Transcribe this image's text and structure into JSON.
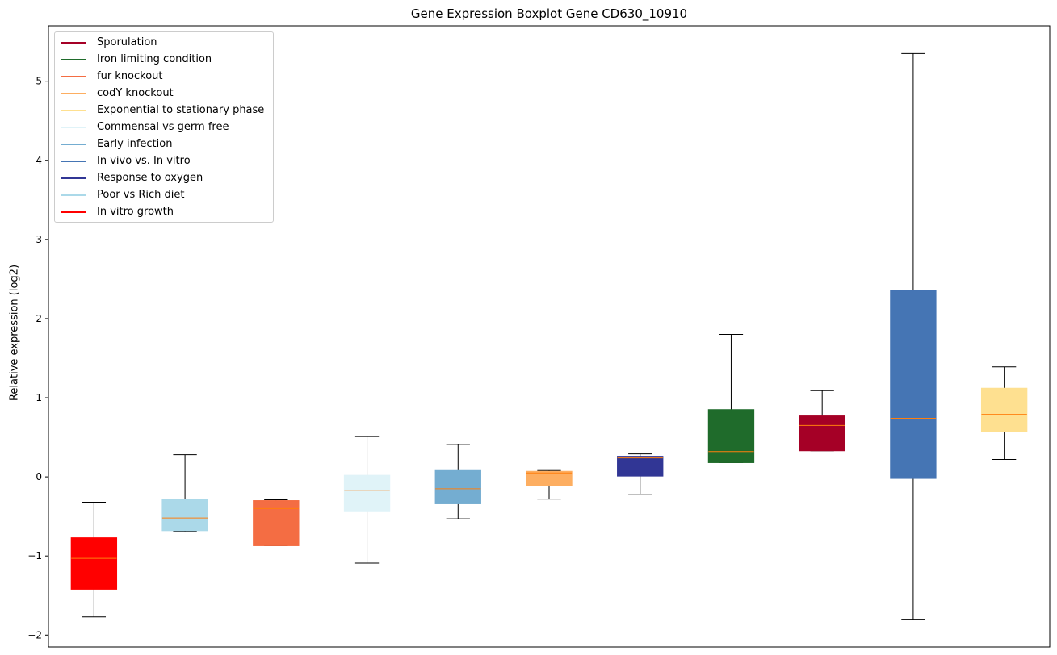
{
  "chart_data": {
    "type": "box",
    "title": "Gene Expression Boxplot Gene CD630_10910",
    "xlabel": "",
    "ylabel": "Relative expression (log2)",
    "ylim": [
      -2.15,
      5.7
    ],
    "yticks": [
      -2,
      -1,
      0,
      1,
      2,
      3,
      4,
      5
    ],
    "grid": false,
    "legend_position": "top-left",
    "median_color": "#ff7f0e",
    "legend": [
      {
        "label": "Sporulation",
        "color": "#a50026"
      },
      {
        "label": "Iron limiting condition",
        "color": "#1f6b2b"
      },
      {
        "label": "fur knockout",
        "color": "#f46d43"
      },
      {
        "label": "codY knockout",
        "color": "#fdae61"
      },
      {
        "label": "Exponential to stationary phase",
        "color": "#fee090"
      },
      {
        "label": "Commensal vs germ free",
        "color": "#e0f3f8"
      },
      {
        "label": "Early infection",
        "color": "#74add1"
      },
      {
        "label": "In vivo vs. In vitro",
        "color": "#4575b4"
      },
      {
        "label": "Response to oxygen",
        "color": "#313695"
      },
      {
        "label": "Poor vs Rich diet",
        "color": "#abd9e9"
      },
      {
        "label": "In vitro growth",
        "color": "#ff0000"
      }
    ],
    "boxes": [
      {
        "series": "In vitro growth",
        "color": "#ff0000",
        "whislo": -1.77,
        "q1": -1.42,
        "median": -1.03,
        "q3": -0.77,
        "whishi": -0.32
      },
      {
        "series": "Poor vs Rich diet",
        "color": "#abd9e9",
        "whislo": -0.69,
        "q1": -0.68,
        "median": -0.52,
        "q3": -0.28,
        "whishi": 0.28
      },
      {
        "series": "fur knockout",
        "color": "#f46d43",
        "whislo": -0.87,
        "q1": -0.87,
        "median": -0.4,
        "q3": -0.3,
        "whishi": -0.29
      },
      {
        "series": "Commensal vs germ free",
        "color": "#e0f3f8",
        "whislo": -1.09,
        "q1": -0.44,
        "median": -0.17,
        "q3": 0.02,
        "whishi": 0.51
      },
      {
        "series": "Early infection",
        "color": "#74add1",
        "whislo": -0.53,
        "q1": -0.34,
        "median": -0.15,
        "q3": 0.08,
        "whishi": 0.41
      },
      {
        "series": "codY knockout",
        "color": "#fdae61",
        "whislo": -0.28,
        "q1": -0.11,
        "median": 0.05,
        "q3": 0.07,
        "whishi": 0.08
      },
      {
        "series": "Response to oxygen",
        "color": "#313695",
        "whislo": -0.22,
        "q1": 0.01,
        "median": 0.24,
        "q3": 0.26,
        "whishi": 0.29
      },
      {
        "series": "Iron limiting condition",
        "color": "#1f6b2b",
        "whislo": 0.18,
        "q1": 0.18,
        "median": 0.32,
        "q3": 0.85,
        "whishi": 1.8
      },
      {
        "series": "Sporulation",
        "color": "#a50026",
        "whislo": 0.33,
        "q1": 0.33,
        "median": 0.65,
        "q3": 0.77,
        "whishi": 1.09
      },
      {
        "series": "In vivo vs. In vitro",
        "color": "#4575b4",
        "whislo": -1.8,
        "q1": -0.02,
        "median": 0.74,
        "q3": 2.36,
        "whishi": 5.35
      },
      {
        "series": "Exponential to stationary phase",
        "color": "#fee090",
        "whislo": 0.22,
        "q1": 0.57,
        "median": 0.79,
        "q3": 1.12,
        "whishi": 1.39
      }
    ]
  }
}
